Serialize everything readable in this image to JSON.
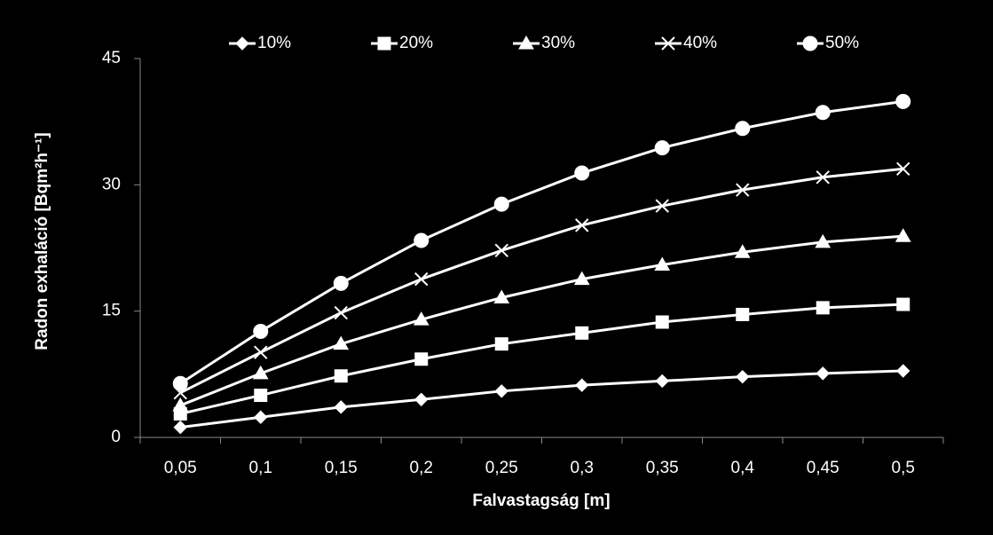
{
  "chart_data": {
    "type": "line",
    "x_label": "Falvastagság [m]",
    "y_label": "Radon exhaláció  [Bqm²h⁻¹]",
    "categories": [
      "0,05",
      "0,1",
      "0,15",
      "0,2",
      "0,25",
      "0,3",
      "0,35",
      "0,4",
      "0,45",
      "0,5"
    ],
    "series": [
      {
        "name": "10%",
        "color": "#ffffff",
        "marker": "diamond",
        "values": [
          1.2,
          2.4,
          3.6,
          4.5,
          5.5,
          6.2,
          6.7,
          7.2,
          7.6,
          7.9
        ]
      },
      {
        "name": "20%",
        "color": "#ffffff",
        "marker": "square",
        "values": [
          2.8,
          5.0,
          7.3,
          9.3,
          11.1,
          12.4,
          13.7,
          14.6,
          15.4,
          15.8
        ]
      },
      {
        "name": "30%",
        "color": "#ffffff",
        "marker": "triangle",
        "values": [
          3.8,
          7.6,
          11.1,
          14.0,
          16.6,
          18.8,
          20.5,
          22.0,
          23.2,
          23.9
        ]
      },
      {
        "name": "40%",
        "color": "#ffffff",
        "marker": "x",
        "values": [
          5.3,
          10.1,
          14.8,
          18.8,
          22.2,
          25.2,
          27.5,
          29.4,
          30.9,
          31.9
        ]
      },
      {
        "name": "50%",
        "color": "#ffffff",
        "marker": "circle",
        "values": [
          6.4,
          12.6,
          18.3,
          23.4,
          27.7,
          31.4,
          34.4,
          36.7,
          38.6,
          39.9
        ]
      }
    ],
    "ylim": [
      0,
      45
    ],
    "yticks": [
      0,
      15,
      30,
      45
    ],
    "grid": false,
    "legend": "top"
  }
}
